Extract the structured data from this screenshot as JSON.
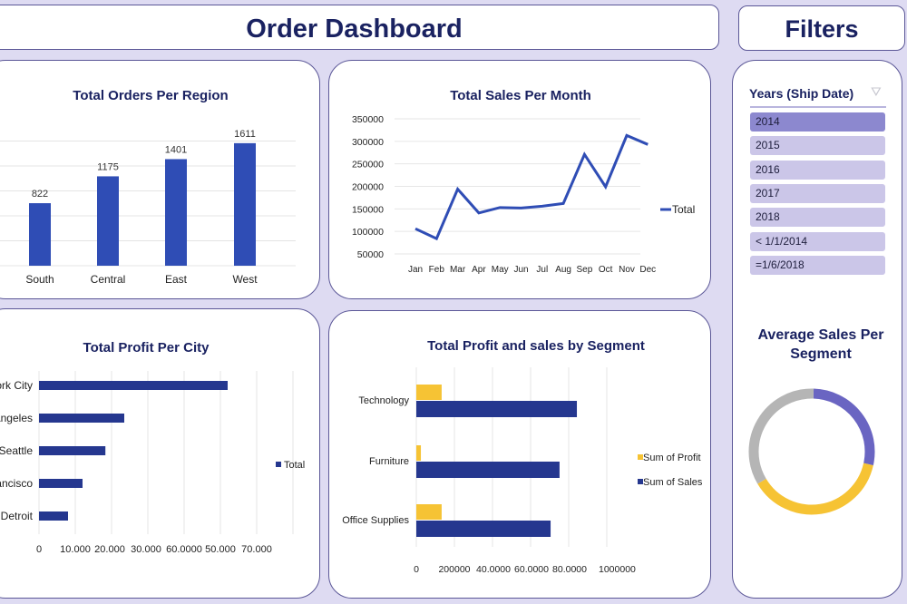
{
  "header": {
    "title": "Order Dashboard",
    "filters_title": "Filters"
  },
  "filters": {
    "label": "Years (Ship Date)",
    "items": [
      "2014",
      "2015",
      "2016",
      "2017",
      "2018",
      "< 1/1/2014",
      "=1/6/2018"
    ],
    "selected": "2014"
  },
  "colors": {
    "navy": "#2f4db5",
    "dark_navy": "#25378f",
    "yellow": "#f6c334",
    "gray": "#b5b5b5",
    "purple": "#6a65c2"
  },
  "chart_data": [
    {
      "type": "bar",
      "title": "Total Orders Per Region",
      "categories": [
        "South",
        "Central",
        "East",
        "West"
      ],
      "values": [
        822,
        1175,
        1401,
        1611
      ],
      "data_labels": [
        "822",
        "1175",
        "1401",
        "1611"
      ],
      "ylim": [
        0,
        1800
      ]
    },
    {
      "type": "line",
      "title": "Total Sales Per Month",
      "x": [
        "Jan",
        "Feb",
        "Mar",
        "Apr",
        "May",
        "Jun",
        "Jul",
        "Aug",
        "Sep",
        "Oct",
        "Nov",
        "Dec"
      ],
      "series": [
        {
          "name": "Total",
          "values": [
            106000,
            84000,
            194000,
            141000,
            153000,
            152000,
            156000,
            162000,
            271000,
            199000,
            313000,
            293000
          ]
        }
      ],
      "yticks": [
        "350000",
        "300000",
        "250000",
        "200000",
        "150000",
        "100000",
        "50000"
      ],
      "ylim": [
        50000,
        350000
      ],
      "legend": "right"
    },
    {
      "type": "bar",
      "orientation": "horizontal",
      "title": "Total Profit Per City",
      "categories": [
        "New York City",
        "Los Angeles",
        "Seattle",
        "San Francisco",
        "Detroit"
      ],
      "series": [
        {
          "name": "Total",
          "values": [
            52000,
            23500,
            18300,
            12000,
            8000
          ]
        }
      ],
      "xticks": [
        "0",
        "10.000",
        "20.000",
        "30.000",
        "60.0000",
        "50.000",
        "70.000"
      ],
      "xlim": [
        0,
        70000
      ],
      "legend": "right"
    },
    {
      "type": "bar",
      "orientation": "horizontal",
      "title": "Total Profit and sales by Segment",
      "categories": [
        "Technology",
        "Furniture",
        "Office Supplies"
      ],
      "series": [
        {
          "name": "Sum of Profit",
          "values": [
            133000,
            24000,
            133000
          ]
        },
        {
          "name": "Sum of Sales",
          "values": [
            843000,
            752000,
            705000
          ]
        }
      ],
      "xticks": [
        "0",
        "200000",
        "40.0000",
        "60.0000",
        "80.0000",
        "1000000"
      ],
      "xlim": [
        0,
        1000000
      ],
      "legend": "right"
    },
    {
      "type": "pie",
      "title": "Average Sales Per Segment",
      "values": [
        0.28,
        0.38,
        0.34
      ],
      "colors": [
        "#6a65c2",
        "#f6c334",
        "#b5b5b5"
      ]
    }
  ]
}
